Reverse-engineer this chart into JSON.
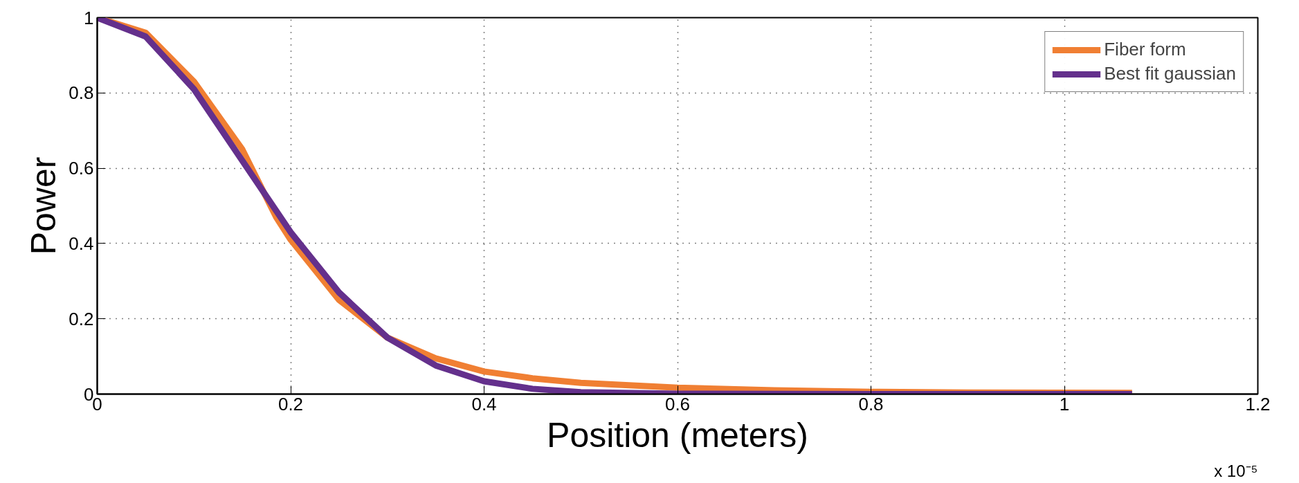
{
  "chart_data": {
    "type": "line",
    "xlabel": "Position (meters)",
    "ylabel": "Power",
    "annotations": [
      "x 10⁻⁵"
    ],
    "xlim": [
      0,
      1.2
    ],
    "xticks": [
      0,
      0.2,
      0.4,
      0.6,
      0.8,
      1,
      1.2
    ],
    "ylim": [
      0,
      1
    ],
    "yticks": [
      0,
      0.2,
      0.4,
      0.6,
      0.8,
      1
    ],
    "grid": true,
    "legend": "top right",
    "line_style": "solid",
    "marker": "none",
    "series": [
      {
        "name": "Fiber form",
        "color": "#f07f33",
        "x": [
          0,
          0.05,
          0.1,
          0.15,
          0.185,
          0.2,
          0.25,
          0.3,
          0.35,
          0.4,
          0.45,
          0.5,
          0.6,
          0.7,
          0.8,
          0.9,
          1.07
        ],
        "values": [
          1,
          0.96,
          0.83,
          0.65,
          0.47,
          0.41,
          0.25,
          0.15,
          0.095,
          0.06,
          0.042,
          0.03,
          0.017,
          0.01,
          0.006,
          0.004,
          0.003
        ]
      },
      {
        "name": "Best fit gaussian",
        "color": "#64308c",
        "x": [
          0,
          0.05,
          0.1,
          0.15,
          0.2,
          0.25,
          0.3,
          0.35,
          0.4,
          0.45,
          0.5,
          0.6,
          0.8,
          1.07
        ],
        "values": [
          1,
          0.95,
          0.81,
          0.62,
          0.43,
          0.27,
          0.15,
          0.076,
          0.034,
          0.014,
          0.005,
          0.001,
          0,
          0
        ]
      }
    ]
  }
}
